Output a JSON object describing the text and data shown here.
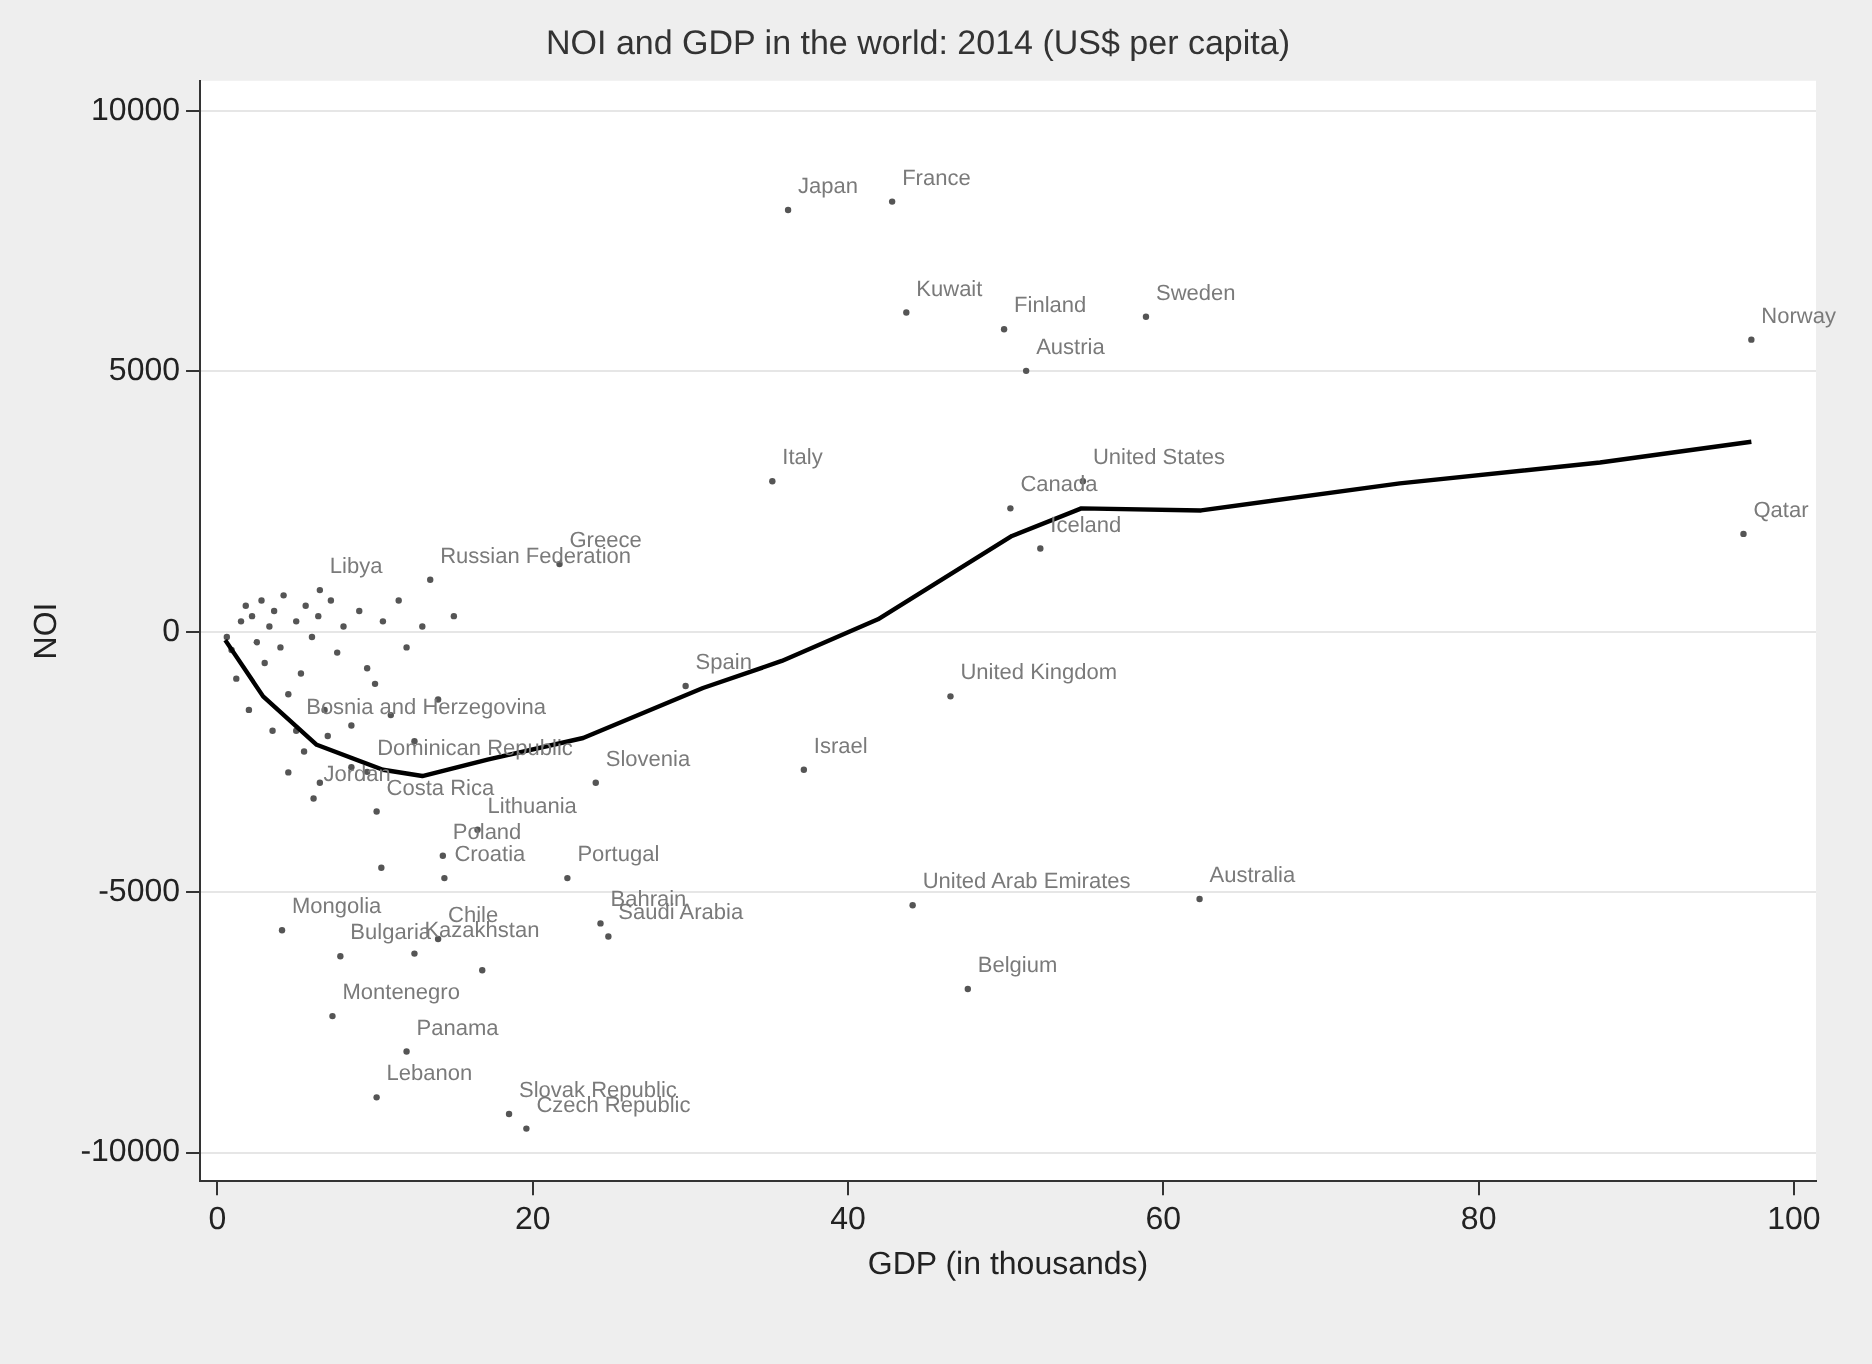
{
  "chart_data": {
    "type": "scatter",
    "title": "NOI and GDP in the world: 2014 (US$ per capita)",
    "xlabel": "GDP (in thousands)",
    "ylabel": "NOI",
    "xlim": [
      -1.1,
      101.4
    ],
    "xticks": [
      0,
      20,
      40,
      60,
      80,
      100
    ],
    "ylim": [
      -10550,
      10580
    ],
    "yticks": [
      -10000,
      -5000,
      0,
      5000,
      10000
    ],
    "grid": "y",
    "legend": false,
    "marker": "circle",
    "series": [
      {
        "color": "#555555",
        "x": [
          36.2,
          42.8,
          43.7,
          49.9,
          51.3,
          58.9,
          97.3,
          35.2,
          50.3,
          52.2,
          54.9,
          96.8,
          21.7,
          13.5,
          6.5,
          29.7,
          46.5,
          37.2,
          24.0,
          44.1,
          62.3,
          47.6,
          6.1,
          10.1,
          16.5,
          14.3,
          22.2,
          4.1,
          14.4,
          24.8,
          24.3,
          7.8,
          7.3,
          12.5,
          14.0,
          12.0,
          10.1,
          18.5,
          19.6,
          5.0,
          9.5,
          10.4,
          16.8,
          0.6,
          0.9,
          1.2,
          1.5,
          1.8,
          2.2,
          2.5,
          2.8,
          3.0,
          3.3,
          3.6,
          4.0,
          4.2,
          4.5,
          5.0,
          5.3,
          5.6,
          6.0,
          6.4,
          6.8,
          7.2,
          7.6,
          8.0,
          8.5,
          9.0,
          9.5,
          10.0,
          10.5,
          11.0,
          11.5,
          12.0,
          12.5,
          13.0,
          14.0,
          15.0,
          4.5,
          5.5,
          3.5,
          6.5,
          8.5,
          2.0,
          7.0
        ],
        "values": [
          8100,
          8260,
          6130,
          5810,
          5010,
          6050,
          5610,
          2890,
          2370,
          1600,
          2890,
          1880,
          1300,
          1000,
          800,
          -1040,
          -1240,
          -2650,
          -2900,
          -5250,
          -5130,
          -6860,
          -3200,
          -3450,
          -3800,
          -4300,
          -4730,
          -5730,
          -4730,
          -5850,
          -5600,
          -6230,
          -7380,
          -6180,
          -5900,
          -8060,
          -8940,
          -9260,
          -9540,
          -1900,
          -2690,
          -4530,
          -6500,
          -100,
          -350,
          -900,
          200,
          500,
          300,
          -200,
          600,
          -600,
          100,
          400,
          -300,
          700,
          -1200,
          200,
          -800,
          500,
          -100,
          300,
          -1500,
          600,
          -400,
          100,
          -1800,
          400,
          -700,
          -1000,
          200,
          -1600,
          600,
          -300,
          -2100,
          100,
          -1300,
          300,
          -2700,
          -2300,
          -1900,
          -2900,
          -2600,
          -1500,
          -2000
        ]
      },
      {
        "type": "line",
        "color": "#000000",
        "marker": "none",
        "x": [
          0.5,
          2.9,
          6.3,
          10.5,
          13.0,
          17.2,
          23.2,
          30.8,
          35.8,
          41.9,
          50.4,
          54.8,
          62.4,
          75.0,
          87.7,
          97.3
        ],
        "values": [
          -160,
          -1240,
          -2170,
          -2650,
          -2770,
          -2450,
          -2040,
          -1080,
          -560,
          240,
          1840,
          2370,
          2330,
          2850,
          3250,
          3650
        ]
      }
    ],
    "annotations": [
      {
        "text": "Japan",
        "x": 36.2,
        "y": 8100
      },
      {
        "text": "France",
        "x": 42.8,
        "y": 8260
      },
      {
        "text": "Kuwait",
        "x": 43.7,
        "y": 6130
      },
      {
        "text": "Finland",
        "x": 49.9,
        "y": 5810
      },
      {
        "text": "Austria",
        "x": 51.3,
        "y": 5010
      },
      {
        "text": "Sweden",
        "x": 58.9,
        "y": 6050
      },
      {
        "text": "Norway",
        "x": 97.3,
        "y": 5610
      },
      {
        "text": "Italy",
        "x": 35.2,
        "y": 2890
      },
      {
        "text": "Canada",
        "x": 50.3,
        "y": 2370
      },
      {
        "text": "Iceland",
        "x": 52.2,
        "y": 1600
      },
      {
        "text": "United States",
        "x": 54.9,
        "y": 2890
      },
      {
        "text": "Qatar",
        "x": 96.8,
        "y": 1880
      },
      {
        "text": "Greece",
        "x": 21.7,
        "y": 1300
      },
      {
        "text": "Russian Federation",
        "x": 13.5,
        "y": 1000
      },
      {
        "text": "Libya",
        "x": 6.5,
        "y": 800
      },
      {
        "text": "Spain",
        "x": 29.7,
        "y": -1040
      },
      {
        "text": "United Kingdom",
        "x": 46.5,
        "y": -1240
      },
      {
        "text": "Israel",
        "x": 37.2,
        "y": -2650
      },
      {
        "text": "Slovenia",
        "x": 24.0,
        "y": -2900
      },
      {
        "text": "United Arab Emirates",
        "x": 44.1,
        "y": -5250
      },
      {
        "text": "Australia",
        "x": 62.3,
        "y": -5130
      },
      {
        "text": "Belgium",
        "x": 47.6,
        "y": -6860
      },
      {
        "text": "Jordan",
        "x": 6.1,
        "y": -3200
      },
      {
        "text": "Costa Rica",
        "x": 10.1,
        "y": -3450
      },
      {
        "text": "Lithuania",
        "x": 16.5,
        "y": -3800
      },
      {
        "text": "Poland",
        "x": 14.3,
        "y": -4300
      },
      {
        "text": "Portugal",
        "x": 22.2,
        "y": -4730
      },
      {
        "text": "Mongolia",
        "x": 4.1,
        "y": -5730
      },
      {
        "text": "Croatia",
        "x": 14.4,
        "y": -4730
      },
      {
        "text": "Saudi Arabia",
        "x": 24.8,
        "y": -5850
      },
      {
        "text": "Bahrain",
        "x": 24.3,
        "y": -5600
      },
      {
        "text": "Bulgaria",
        "x": 7.8,
        "y": -6230
      },
      {
        "text": "Montenegro",
        "x": 7.3,
        "y": -7380
      },
      {
        "text": "Kazakhstan",
        "x": 12.5,
        "y": -6180
      },
      {
        "text": "Chile",
        "x": 14.0,
        "y": -5900
      },
      {
        "text": "Panama",
        "x": 12.0,
        "y": -8060
      },
      {
        "text": "Lebanon",
        "x": 10.1,
        "y": -8940
      },
      {
        "text": "Slovak Republic",
        "x": 18.5,
        "y": -9260
      },
      {
        "text": "Czech Republic",
        "x": 19.6,
        "y": -9540
      },
      {
        "text": "Bosnia and Herzegovina",
        "x": 5.0,
        "y": -1900
      },
      {
        "text": "Dominican Republic",
        "x": 9.5,
        "y": -2690
      }
    ]
  }
}
